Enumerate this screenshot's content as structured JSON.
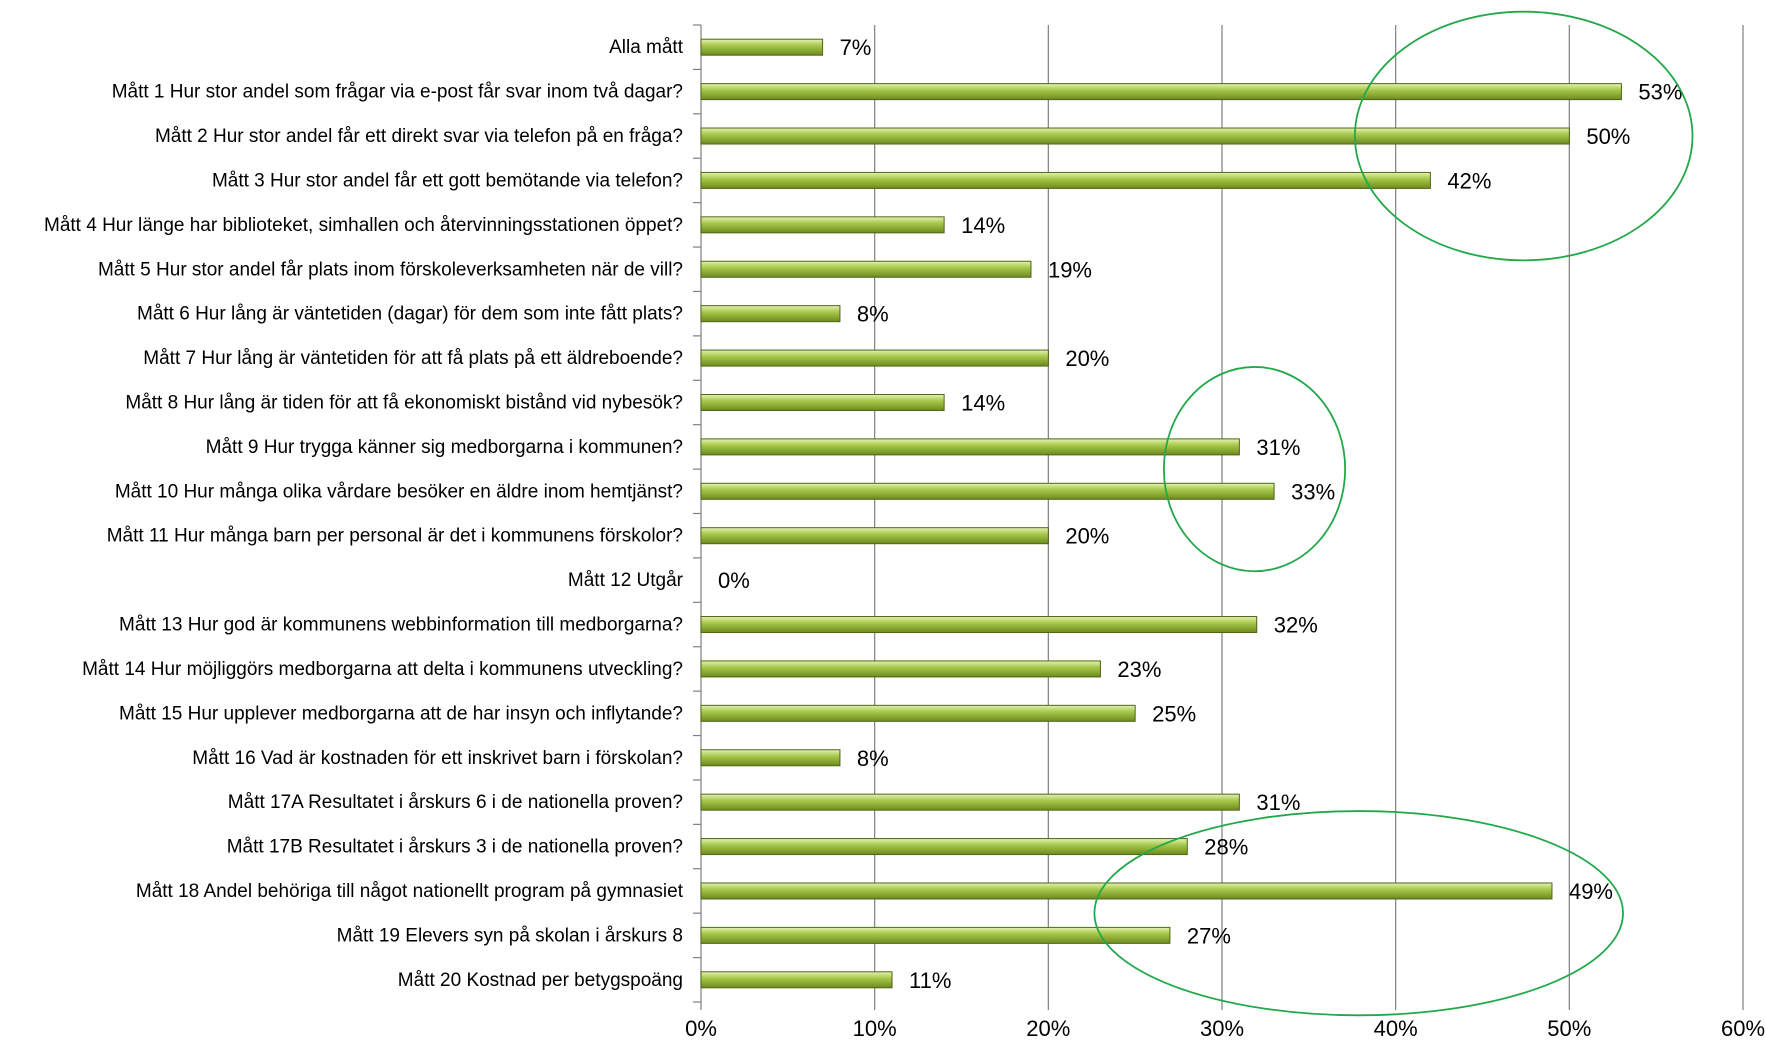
{
  "chart_data": {
    "type": "bar",
    "orientation": "horizontal",
    "categories": [
      "Alla mått",
      "Mått 1 Hur stor andel som frågar via e-post får svar inom två dagar?",
      "Mått 2 Hur stor andel får ett direkt svar via telefon på en fråga?",
      "Mått 3 Hur stor andel får ett gott bemötande via telefon?",
      "Mått 4 Hur länge har biblioteket, simhallen och återvinningsstationen öppet?",
      "Mått 5 Hur stor andel får plats inom förskoleverksamheten när de vill?",
      "Mått 6 Hur lång är väntetiden (dagar) för dem som inte fått plats?",
      "Mått 7 Hur lång är väntetiden för att få plats på ett äldreboende?",
      "Mått 8 Hur lång är tiden för att få ekonomiskt bistånd vid nybesök?",
      "Mått 9 Hur trygga känner sig medborgarna i kommunen?",
      "Mått 10 Hur många olika vårdare besöker en äldre inom hemtjänst?",
      "Mått 11 Hur många barn per personal är det i kommunens förskolor?",
      "Mått 12 Utgår",
      "Mått 13 Hur god är kommunens webbinformation till medborgarna?",
      "Mått 14 Hur möjliggörs medborgarna att delta i kommunens utveckling?",
      "Mått 15 Hur upplever medborgarna att de har insyn och inflytande?",
      "Mått 16 Vad är kostnaden för ett inskrivet barn i förskolan?",
      "Mått 17A Resultatet i årskurs 6 i de nationella proven?",
      "Mått 17B Resultatet i årskurs 3 i de nationella proven?",
      "Mått 18 Andel behöriga till något nationellt program på gymnasiet",
      "Mått 19 Elevers syn på skolan i årskurs 8",
      "Mått 20 Kostnad per betygspoäng"
    ],
    "values": [
      7,
      53,
      50,
      42,
      14,
      19,
      8,
      20,
      14,
      31,
      33,
      20,
      0,
      32,
      23,
      25,
      8,
      31,
      28,
      49,
      27,
      11
    ],
    "value_labels": [
      "7%",
      "53%",
      "50%",
      "42%",
      "14%",
      "19%",
      "8%",
      "20%",
      "14%",
      "31%",
      "33%",
      "20%",
      "0%",
      "32%",
      "23%",
      "25%",
      "8%",
      "31%",
      "28%",
      "49%",
      "27%",
      "11%"
    ],
    "xlim": [
      0,
      60
    ],
    "x_ticks": [
      0,
      10,
      20,
      30,
      40,
      50,
      60
    ],
    "x_tick_labels": [
      "0%",
      "10%",
      "20%",
      "30%",
      "40%",
      "50%",
      "60%"
    ],
    "grid": "vertical",
    "legend": "none",
    "highlight_ellipses": [
      {
        "categories": [
          1,
          2,
          3
        ],
        "color": "#22a84a"
      },
      {
        "categories": [
          9,
          10
        ],
        "color": "#22a84a"
      },
      {
        "categories": [
          19,
          20
        ],
        "color": "#22a84a"
      }
    ],
    "colors": {
      "bar_light": "#e6f2b4",
      "bar_mid": "#a6c84a",
      "bar_dark": "#6e8a1f",
      "bar_outline": "#4f6616",
      "grid": "#7f7f7f",
      "highlight": "#22a84a"
    }
  }
}
